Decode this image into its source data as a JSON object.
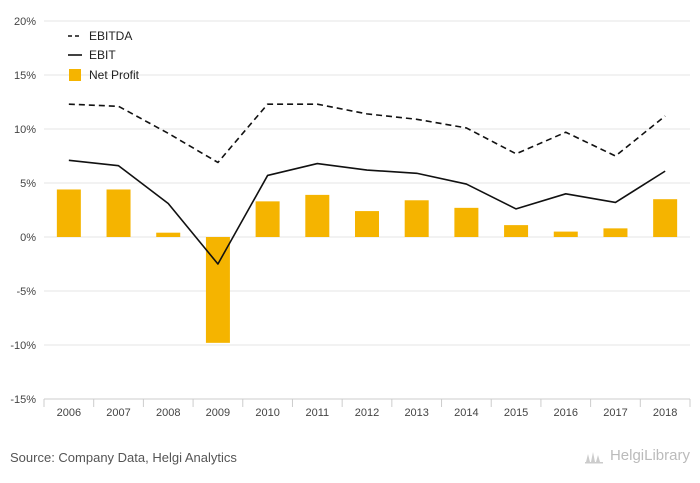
{
  "chart_data": {
    "type": "bar",
    "categories": [
      "2006",
      "2007",
      "2008",
      "2009",
      "2010",
      "2011",
      "2012",
      "2013",
      "2014",
      "2015",
      "2016",
      "2017",
      "2018"
    ],
    "series": [
      {
        "name": "EBITDA",
        "kind": "line",
        "style": "dashed",
        "color": "#111111",
        "values": [
          12.3,
          12.1,
          9.6,
          6.9,
          12.3,
          12.3,
          11.4,
          10.9,
          10.1,
          7.7,
          9.7,
          7.5,
          11.2
        ]
      },
      {
        "name": "EBIT",
        "kind": "line",
        "style": "solid",
        "color": "#111111",
        "values": [
          7.1,
          6.6,
          3.1,
          -2.5,
          5.7,
          6.8,
          6.2,
          5.9,
          4.9,
          2.6,
          4.0,
          3.2,
          6.1
        ]
      },
      {
        "name": "Net Profit",
        "kind": "bar",
        "color": "#F5B400",
        "values": [
          4.4,
          4.4,
          0.4,
          -9.8,
          3.3,
          3.9,
          2.4,
          3.4,
          2.7,
          1.1,
          0.5,
          0.8,
          3.5
        ]
      }
    ],
    "yticks": [
      "20%",
      "15%",
      "10%",
      "5%",
      "0%",
      "-5%",
      "-10%",
      "-15%"
    ],
    "ylim": [
      -15,
      20
    ],
    "ylabel": "",
    "xlabel": "",
    "grid": true,
    "legend": "top-left"
  },
  "source": "Source: Company Data, Helgi Analytics",
  "brand": "HelgiLibrary"
}
